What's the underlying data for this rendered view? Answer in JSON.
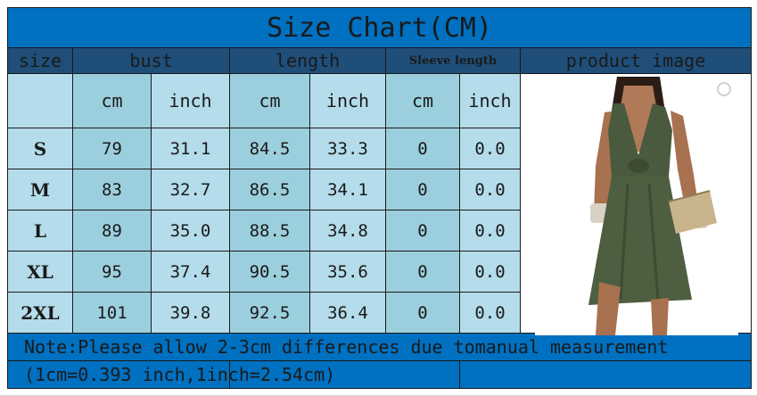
{
  "title": "Size Chart(CM)",
  "headers": {
    "size": "size",
    "bust": "bust",
    "length": "length",
    "sleeve": "Sleeve length",
    "image": "product image"
  },
  "units": [
    "cm",
    "inch",
    "cm",
    "inch",
    "cm",
    "inch"
  ],
  "rows": [
    {
      "size": "S",
      "bust_cm": "79",
      "bust_in": "31.1",
      "len_cm": "84.5",
      "len_in": "33.3",
      "sl_cm": "0",
      "sl_in": "0.0"
    },
    {
      "size": "M",
      "bust_cm": "83",
      "bust_in": "32.7",
      "len_cm": "86.5",
      "len_in": "34.1",
      "sl_cm": "0",
      "sl_in": "0.0"
    },
    {
      "size": "L",
      "bust_cm": "89",
      "bust_in": "35.0",
      "len_cm": "88.5",
      "len_in": "34.8",
      "sl_cm": "0",
      "sl_in": "0.0"
    },
    {
      "size": "XL",
      "bust_cm": "95",
      "bust_in": "37.4",
      "len_cm": "90.5",
      "len_in": "35.6",
      "sl_cm": "0",
      "sl_in": "0.0"
    },
    {
      "size": "2XL",
      "bust_cm": "101",
      "bust_in": "39.8",
      "len_cm": "92.5",
      "len_in": "36.4",
      "sl_cm": "0",
      "sl_in": "0.0"
    }
  ],
  "note": "Note:Please allow 2-3cm differences due tomanual measurement",
  "conversion": "(1cm=0.393 inch,1inch=2.54cm)",
  "colors": {
    "title_bg": "#0070c0",
    "header_bg": "#1f4e79",
    "cell_light": "#b4dcea",
    "cell_mid": "#9ccfdd",
    "dress": "#4a5a3e"
  },
  "product_image": "olive-green-sleeveless-twist-dress-photo"
}
